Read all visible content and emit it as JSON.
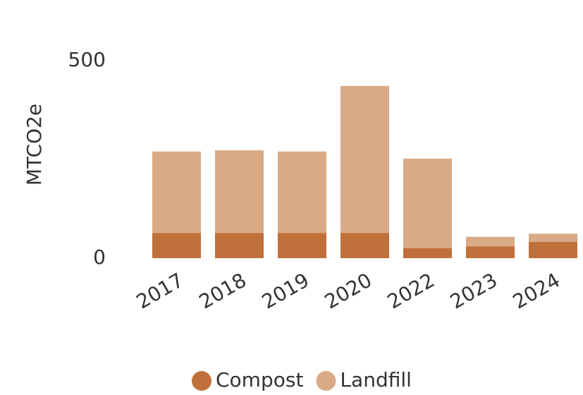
{
  "chart_data": {
    "type": "stacked_bar",
    "y_label": "MTCO2e",
    "categories": [
      "2017",
      "2018",
      "2019",
      "2020",
      "2022",
      "2023",
      "2024"
    ],
    "series": [
      {
        "name": "Compost",
        "color": "#c0703a",
        "values": [
          64,
          64,
          64,
          64,
          25,
          30,
          41
        ]
      },
      {
        "name": "Landfill",
        "color": "#d9aa85",
        "values": [
          206,
          209,
          206,
          372,
          227,
          24,
          21
        ]
      }
    ],
    "ylim": [
      0,
      500
    ],
    "yticks": [
      0,
      500
    ],
    "grid": false,
    "legend": "bottom"
  }
}
